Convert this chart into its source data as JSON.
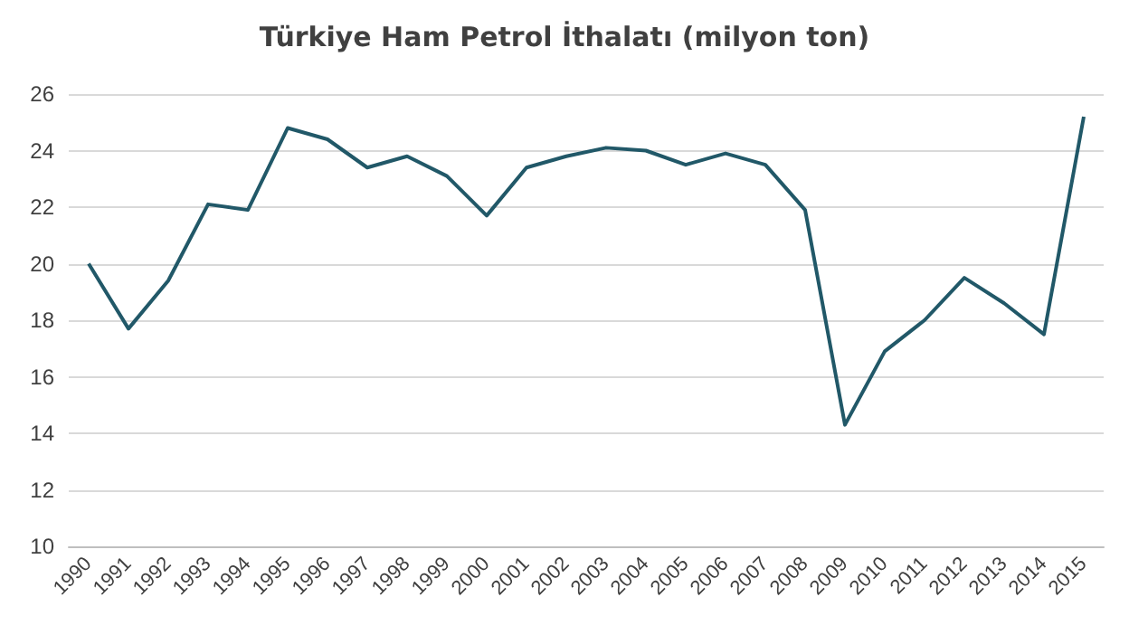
{
  "chart_data": {
    "type": "line",
    "title": "Türkiye Ham Petrol İthalatı (milyon ton)",
    "categories": [
      "1990",
      "1991",
      "1992",
      "1993",
      "1994",
      "1995",
      "1996",
      "1997",
      "1998",
      "1999",
      "2000",
      "2001",
      "2002",
      "2003",
      "2004",
      "2005",
      "2006",
      "2007",
      "2008",
      "2009",
      "2010",
      "2011",
      "2012",
      "2013",
      "2014",
      "2015"
    ],
    "series": [
      {
        "color": "#215868",
        "values": [
          20.0,
          17.7,
          19.4,
          22.1,
          21.9,
          24.8,
          24.4,
          23.4,
          23.8,
          23.1,
          21.7,
          23.4,
          23.8,
          24.1,
          24.0,
          23.5,
          23.9,
          23.5,
          21.9,
          14.3,
          16.9,
          18.0,
          19.5,
          18.6,
          17.5,
          25.2
        ]
      }
    ],
    "ylim": [
      10,
      26
    ],
    "yticks": [
      10,
      12,
      14,
      16,
      18,
      20,
      22,
      24,
      26
    ],
    "grid": "y",
    "marker": "none",
    "line_style": "solid"
  }
}
